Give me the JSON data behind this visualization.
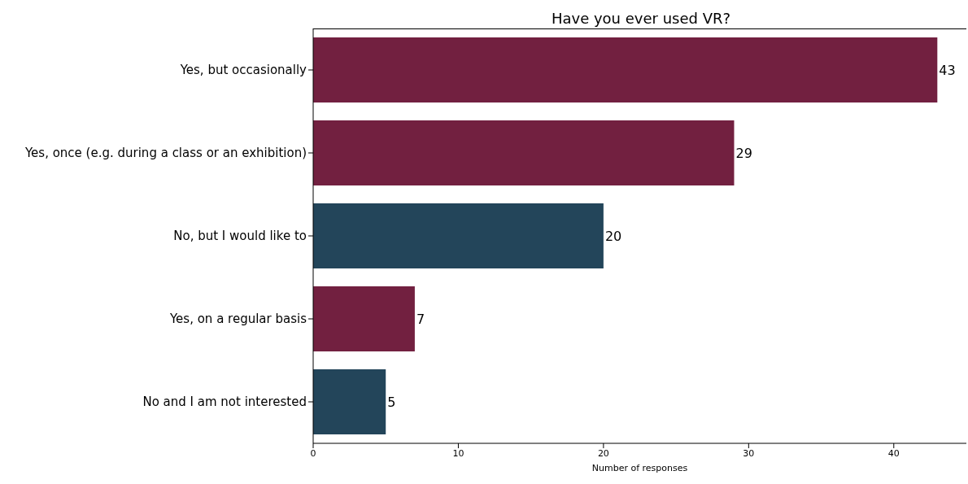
{
  "chart_data": {
    "type": "bar",
    "orientation": "horizontal",
    "title": "Have you ever used VR?",
    "xlabel": "Number of responses",
    "categories": [
      "Yes, but occasionally",
      "Yes, once (e.g. during a class or an exhibition)",
      "No, but I would like to",
      "Yes, on a regular basis",
      "No and I am not interested"
    ],
    "values": [
      43,
      29,
      20,
      7,
      5
    ],
    "colors": [
      "#722040",
      "#722040",
      "#23455a",
      "#722040",
      "#23455a"
    ],
    "xlim": [
      0,
      45
    ],
    "xticks": [
      0,
      10,
      20,
      30,
      40
    ],
    "data_labels": true,
    "grid": false,
    "legend": false
  }
}
